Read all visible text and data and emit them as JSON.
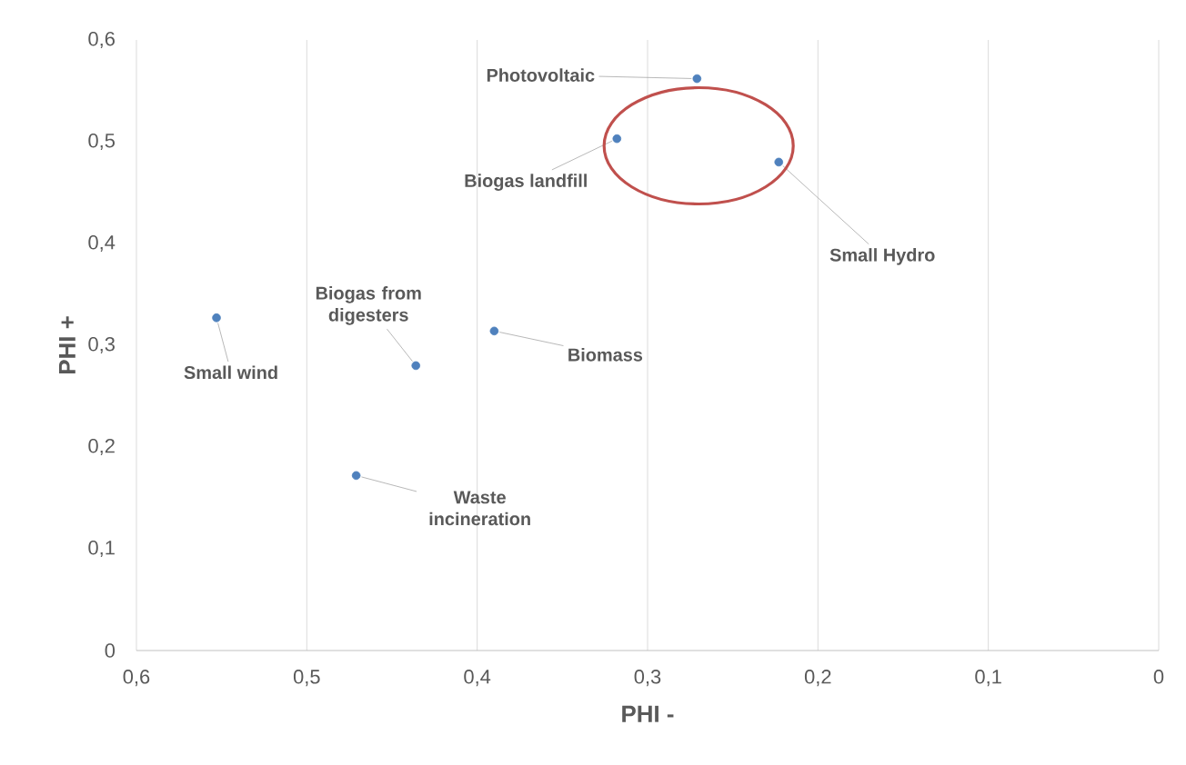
{
  "chart_data": {
    "type": "scatter",
    "xlabel": "PHI -",
    "ylabel": "PHI +",
    "x": [
      0.271,
      0.318,
      0.223,
      0.553,
      0.436,
      0.39,
      0.471
    ],
    "values": [
      0.562,
      0.503,
      0.48,
      0.327,
      0.28,
      0.314,
      0.172
    ],
    "color": "#4f81bd",
    "marker": "circle",
    "grid": "x",
    "xlim": [
      0.6,
      0
    ],
    "xticks": [
      {
        "value": 0.6,
        "label": "0,6"
      },
      {
        "value": 0.5,
        "label": "0,5"
      },
      {
        "value": 0.4,
        "label": "0,4"
      },
      {
        "value": 0.3,
        "label": "0,3"
      },
      {
        "value": 0.2,
        "label": "0,2"
      },
      {
        "value": 0.1,
        "label": "0,1"
      },
      0
    ],
    "ylim": [
      0,
      0.6
    ],
    "yticks": [
      0,
      {
        "value": 0.1,
        "label": "0,1"
      },
      {
        "value": 0.2,
        "label": "0,2"
      },
      {
        "value": 0.3,
        "label": "0,3"
      },
      {
        "value": 0.4,
        "label": "0,4"
      },
      {
        "value": 0.5,
        "label": "0,5"
      },
      {
        "value": 0.6,
        "label": "0,6"
      }
    ],
    "annotations": [
      {
        "text": "Photovoltaic",
        "x": 0.271,
        "y": 0.562
      },
      {
        "text": "Biogas landfill",
        "x": 0.318,
        "y": 0.503
      },
      {
        "text": "Small Hydro",
        "x": 0.223,
        "y": 0.48
      },
      {
        "text": "Small wind",
        "x": 0.553,
        "y": 0.327
      },
      {
        "text": "Biogas from digesters",
        "x": 0.436,
        "y": 0.28
      },
      {
        "text": "Biomass",
        "x": 0.39,
        "y": 0.314
      },
      {
        "text": "Waste incineration",
        "x": 0.471,
        "y": 0.172
      }
    ]
  }
}
